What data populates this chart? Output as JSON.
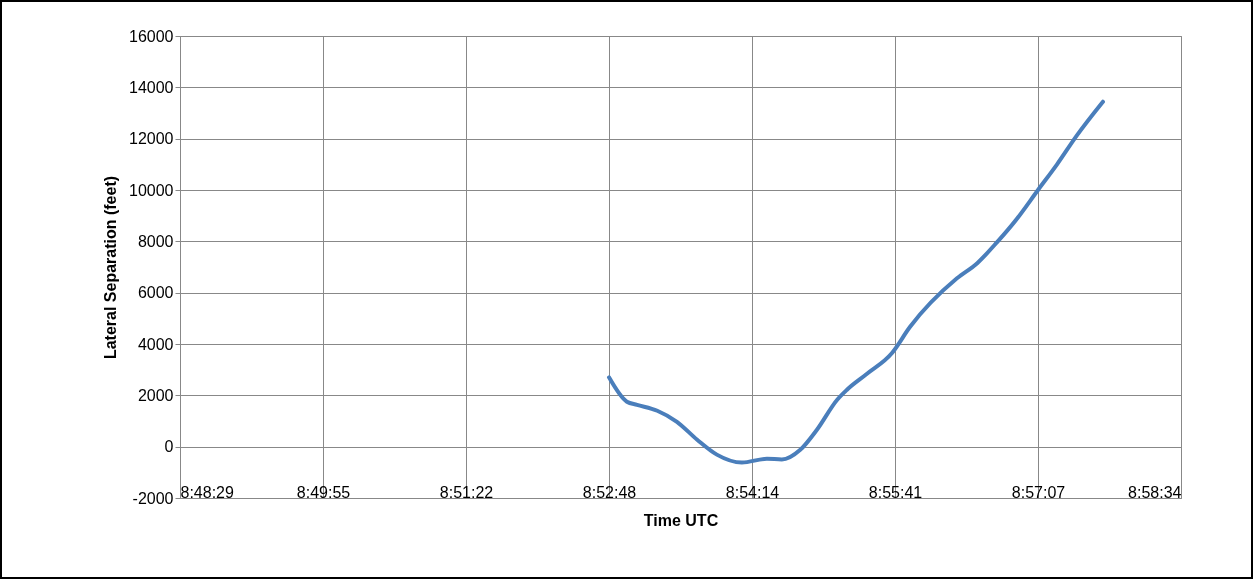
{
  "chart_data": {
    "type": "line",
    "xlabel": "Time UTC",
    "ylabel": "Lateral Separation (feet)",
    "x": [
      8.88,
      8.883,
      8.8847,
      8.8881,
      8.8914,
      8.8948,
      8.8981,
      8.9023,
      8.9065,
      8.909,
      8.9121,
      8.9149,
      8.9183,
      8.9199,
      8.9233,
      8.9275,
      8.9305,
      8.9384,
      8.9418,
      8.9451,
      8.9485,
      8.952,
      8.9552,
      8.9585,
      8.9629
    ],
    "series": [
      {
        "color": "#4a7ebb",
        "values": [
          2700,
          1750,
          1630,
          1400,
          970,
          270,
          -310,
          -620,
          -470,
          -500,
          -120,
          660,
          1830,
          2210,
          2840,
          3650,
          4660,
          6560,
          7150,
          7960,
          8890,
          10000,
          11000,
          12120,
          13440
        ]
      }
    ],
    "xlim": [
      8.808,
      8.976
    ],
    "xticks": [
      {
        "value": 8.808,
        "label": "8:48:29"
      },
      {
        "value": 8.832,
        "label": "8:49:55"
      },
      {
        "value": 8.856,
        "label": "8:51:22"
      },
      {
        "value": 8.88,
        "label": "8:52:48"
      },
      {
        "value": 8.904,
        "label": "8:54:14"
      },
      {
        "value": 8.928,
        "label": "8:55:41"
      },
      {
        "value": 8.952,
        "label": "8:57:07"
      },
      {
        "value": 8.976,
        "label": "8:58:34"
      }
    ],
    "ylim": [
      -2000,
      16000
    ],
    "yticks": [
      -2000,
      0,
      2000,
      4000,
      6000,
      8000,
      10000,
      12000,
      14000,
      16000
    ],
    "grid": true,
    "marker": "none",
    "line_style": "solid"
  }
}
